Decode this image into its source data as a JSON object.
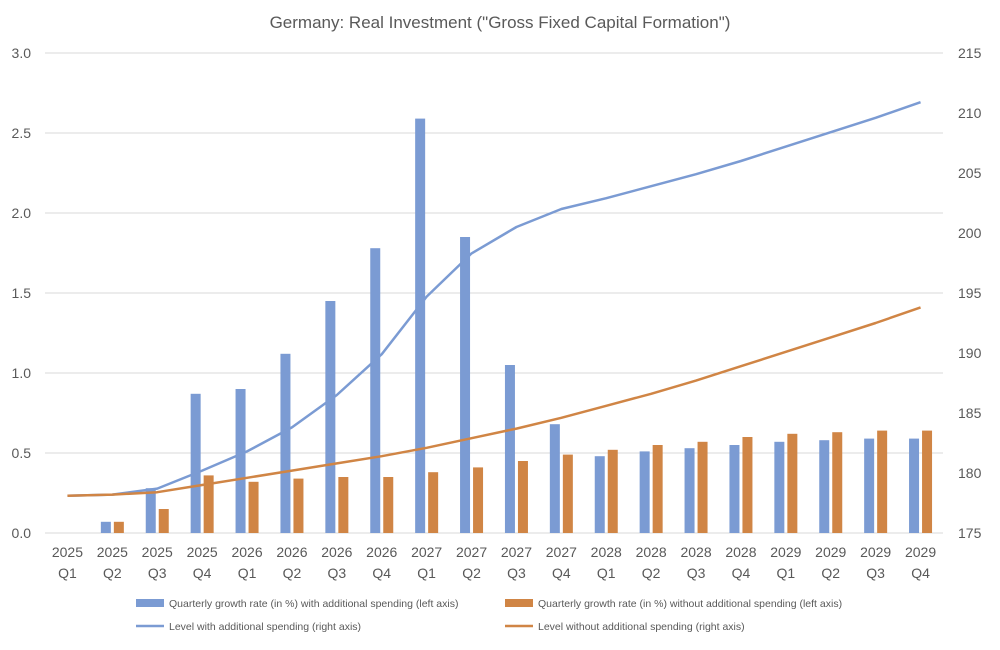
{
  "chart_data": {
    "type": "bar",
    "title": "Germany: Real Investment (\"Gross Fixed Capital Formation\")",
    "categories": [
      [
        "2025",
        "Q1"
      ],
      [
        "2025",
        "Q2"
      ],
      [
        "2025",
        "Q3"
      ],
      [
        "2025",
        "Q4"
      ],
      [
        "2026",
        "Q1"
      ],
      [
        "2026",
        "Q2"
      ],
      [
        "2026",
        "Q3"
      ],
      [
        "2026",
        "Q4"
      ],
      [
        "2027",
        "Q1"
      ],
      [
        "2027",
        "Q2"
      ],
      [
        "2027",
        "Q3"
      ],
      [
        "2027",
        "Q4"
      ],
      [
        "2028",
        "Q1"
      ],
      [
        "2028",
        "Q2"
      ],
      [
        "2028",
        "Q3"
      ],
      [
        "2028",
        "Q4"
      ],
      [
        "2029",
        "Q1"
      ],
      [
        "2029",
        "Q2"
      ],
      [
        "2029",
        "Q3"
      ],
      [
        "2029",
        "Q4"
      ]
    ],
    "y_left": {
      "min": 0,
      "max": 3.0,
      "ticks": [
        "0.0",
        "0.5",
        "1.0",
        "1.5",
        "2.0",
        "2.5",
        "3.0"
      ]
    },
    "y_right": {
      "min": 175,
      "max": 215,
      "ticks": [
        "175",
        "180",
        "185",
        "190",
        "195",
        "200",
        "205",
        "210",
        "215"
      ]
    },
    "grid": true,
    "legend_position": "bottom",
    "series": [
      {
        "name": "Quarterly growth rate (in %) with additional spending (left axis)",
        "kind": "bar",
        "axis": "left",
        "color": "#7b9bd3",
        "values": [
          null,
          0.07,
          0.28,
          0.87,
          0.9,
          1.12,
          1.45,
          1.78,
          2.59,
          1.85,
          1.05,
          0.68,
          0.48,
          0.51,
          0.53,
          0.55,
          0.57,
          0.58,
          0.59,
          0.59
        ]
      },
      {
        "name": "Quarterly growth rate (in %) without additional spending (left axis)",
        "kind": "bar",
        "axis": "left",
        "color": "#d08545",
        "values": [
          null,
          0.07,
          0.15,
          0.36,
          0.32,
          0.34,
          0.35,
          0.35,
          0.38,
          0.41,
          0.45,
          0.49,
          0.52,
          0.55,
          0.57,
          0.6,
          0.62,
          0.63,
          0.64,
          0.64
        ]
      },
      {
        "name": "Level with additional spending (right axis)",
        "kind": "line",
        "axis": "right",
        "color": "#7b9bd3",
        "values": [
          178.1,
          178.2,
          178.7,
          180.2,
          181.8,
          183.8,
          186.5,
          189.9,
          194.7,
          198.3,
          200.5,
          202.0,
          202.9,
          203.9,
          204.9,
          206.0,
          207.2,
          208.4,
          209.6,
          210.9
        ]
      },
      {
        "name": "Level without additional spending (right axis)",
        "kind": "line",
        "axis": "right",
        "color": "#d08545",
        "values": [
          178.1,
          178.2,
          178.4,
          179.0,
          179.6,
          180.2,
          180.8,
          181.4,
          182.1,
          182.9,
          183.7,
          184.6,
          185.6,
          186.6,
          187.7,
          188.9,
          190.1,
          191.3,
          192.5,
          193.8
        ]
      }
    ]
  }
}
